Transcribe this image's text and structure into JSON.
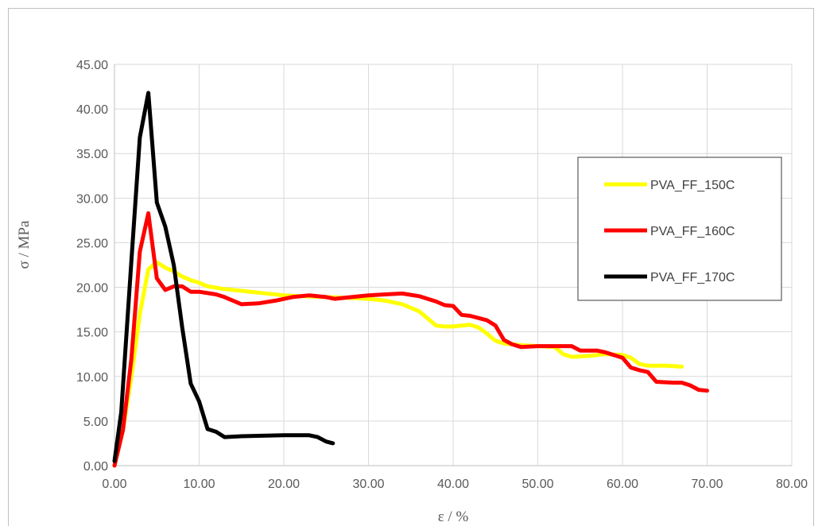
{
  "chart_data": {
    "type": "line",
    "title": "",
    "xlabel": "ε / %",
    "ylabel": "σ / MPa",
    "xlim": [
      0,
      80
    ],
    "ylim": [
      0,
      45
    ],
    "x_ticks": [
      "0.00",
      "10.00",
      "20.00",
      "30.00",
      "40.00",
      "50.00",
      "60.00",
      "70.00",
      "80.00"
    ],
    "y_ticks": [
      "0.00",
      "5.00",
      "10.00",
      "15.00",
      "20.00",
      "25.00",
      "30.00",
      "35.00",
      "40.00",
      "45.00"
    ],
    "grid": true,
    "legend_position": "right",
    "series": [
      {
        "name": "PVA_FF_150C",
        "color": "#FFFF00",
        "points": [
          [
            0,
            0
          ],
          [
            1,
            4
          ],
          [
            2,
            10
          ],
          [
            3,
            17
          ],
          [
            4,
            22
          ],
          [
            5,
            22.8
          ],
          [
            6,
            22.2
          ],
          [
            7,
            21.8
          ],
          [
            8,
            21.2
          ],
          [
            9,
            20.8
          ],
          [
            10,
            20.5
          ],
          [
            11,
            20.1
          ],
          [
            13,
            19.8
          ],
          [
            15,
            19.6
          ],
          [
            17,
            19.4
          ],
          [
            20,
            19.1
          ],
          [
            22,
            19.0
          ],
          [
            25,
            18.9
          ],
          [
            28,
            18.8
          ],
          [
            30,
            18.7
          ],
          [
            32,
            18.5
          ],
          [
            34,
            18.1
          ],
          [
            36,
            17.3
          ],
          [
            37,
            16.5
          ],
          [
            38,
            15.7
          ],
          [
            39,
            15.6
          ],
          [
            40,
            15.6
          ],
          [
            42,
            15.8
          ],
          [
            43,
            15.5
          ],
          [
            44,
            14.8
          ],
          [
            45,
            14.0
          ],
          [
            46,
            13.7
          ],
          [
            48,
            13.5
          ],
          [
            50,
            13.4
          ],
          [
            52,
            13.3
          ],
          [
            53,
            12.5
          ],
          [
            54,
            12.2
          ],
          [
            56,
            12.3
          ],
          [
            58,
            12.5
          ],
          [
            60,
            12.4
          ],
          [
            61,
            12.1
          ],
          [
            62,
            11.4
          ],
          [
            63,
            11.2
          ],
          [
            65,
            11.2
          ],
          [
            67,
            11.1
          ]
        ]
      },
      {
        "name": "PVA_FF_160C",
        "color": "#FF0000",
        "points": [
          [
            0,
            0
          ],
          [
            1,
            4
          ],
          [
            2,
            12
          ],
          [
            3,
            24
          ],
          [
            4,
            28.3
          ],
          [
            5,
            21
          ],
          [
            6,
            19.7
          ],
          [
            7,
            20.1
          ],
          [
            8,
            20.1
          ],
          [
            9,
            19.5
          ],
          [
            10,
            19.5
          ],
          [
            12,
            19.2
          ],
          [
            13,
            18.9
          ],
          [
            14,
            18.5
          ],
          [
            15,
            18.1
          ],
          [
            17,
            18.2
          ],
          [
            19,
            18.5
          ],
          [
            21,
            18.9
          ],
          [
            23,
            19.1
          ],
          [
            25,
            18.9
          ],
          [
            26,
            18.7
          ],
          [
            28,
            18.9
          ],
          [
            30,
            19.1
          ],
          [
            32,
            19.2
          ],
          [
            34,
            19.3
          ],
          [
            36,
            19.0
          ],
          [
            37,
            18.7
          ],
          [
            38,
            18.4
          ],
          [
            39,
            18.0
          ],
          [
            40,
            17.9
          ],
          [
            41,
            16.9
          ],
          [
            42,
            16.8
          ],
          [
            44,
            16.3
          ],
          [
            45,
            15.7
          ],
          [
            46,
            14.1
          ],
          [
            47,
            13.6
          ],
          [
            48,
            13.3
          ],
          [
            50,
            13.4
          ],
          [
            52,
            13.4
          ],
          [
            54,
            13.4
          ],
          [
            55,
            12.9
          ],
          [
            57,
            12.9
          ],
          [
            58,
            12.7
          ],
          [
            60,
            12.1
          ],
          [
            61,
            11.0
          ],
          [
            62,
            10.7
          ],
          [
            63,
            10.5
          ],
          [
            64,
            9.4
          ],
          [
            66,
            9.3
          ],
          [
            67,
            9.3
          ],
          [
            68,
            9.0
          ],
          [
            69,
            8.5
          ],
          [
            70,
            8.4
          ]
        ]
      },
      {
        "name": "PVA_FF_170C",
        "color": "#000000",
        "points": [
          [
            0,
            0.5
          ],
          [
            0.8,
            6
          ],
          [
            2,
            23
          ],
          [
            3,
            36.8
          ],
          [
            4,
            41.8
          ],
          [
            5,
            29.5
          ],
          [
            6,
            26.8
          ],
          [
            7,
            22.5
          ],
          [
            8,
            15.5
          ],
          [
            9,
            9.2
          ],
          [
            10,
            7.2
          ],
          [
            11,
            4.1
          ],
          [
            12,
            3.8
          ],
          [
            13,
            3.2
          ],
          [
            15,
            3.3
          ],
          [
            20,
            3.4
          ],
          [
            21,
            3.4
          ],
          [
            22,
            3.4
          ],
          [
            23,
            3.4
          ],
          [
            24,
            3.2
          ],
          [
            25,
            2.7
          ],
          [
            25.8,
            2.5
          ]
        ]
      }
    ]
  }
}
